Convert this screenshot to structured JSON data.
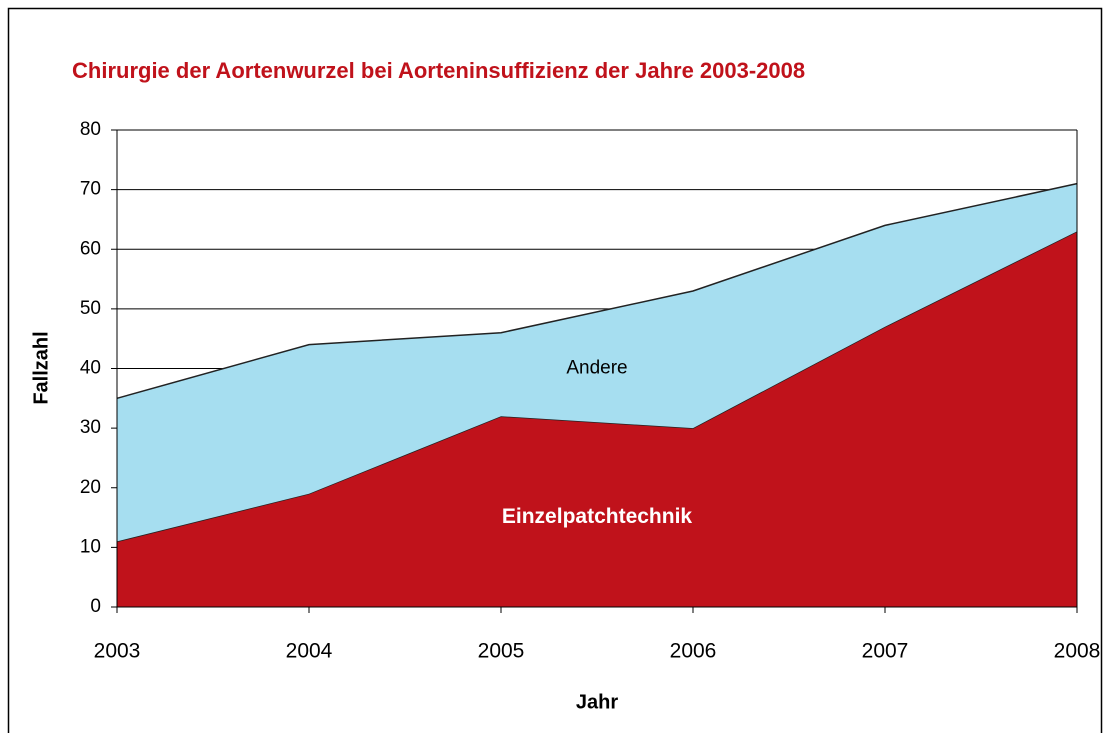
{
  "chart_data": {
    "type": "stacked_area",
    "title": "Chirurgie der Aortenwurzel bei Aorteninsuffizienz der Jahre 2003-2008",
    "x_label": "Jahr",
    "y_label": "Fallzahl",
    "categories": [
      "2003",
      "2004",
      "2005",
      "2006",
      "2007",
      "2008"
    ],
    "series": [
      {
        "name": "Einzelpatchtechnik",
        "color": "#c0121b",
        "values": [
          11,
          19,
          32,
          30,
          47,
          63
        ]
      },
      {
        "name": "Andere",
        "color": "#a6def0",
        "values": [
          24,
          25,
          14,
          23,
          17,
          8
        ]
      }
    ],
    "ylim": [
      0,
      80
    ],
    "yticks": [
      0,
      10,
      20,
      30,
      40,
      50,
      60,
      70,
      80
    ],
    "grid": true
  }
}
